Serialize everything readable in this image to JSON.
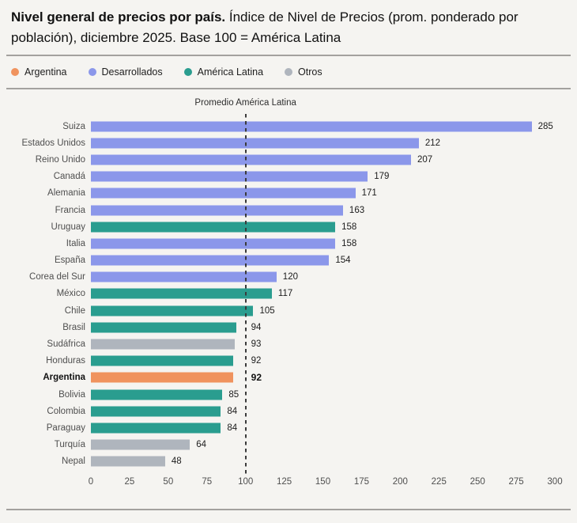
{
  "title": {
    "bold": "Nivel general de precios por país.",
    "rest": " Índice de Nivel de Precios (prom. ponderado por población), diciembre 2025. Base 100 = América Latina"
  },
  "legend": [
    {
      "key": "argentina",
      "label": "Argentina",
      "color": "#F0935E"
    },
    {
      "key": "desarrollados",
      "label": "Desarrollados",
      "color": "#8B97EA"
    },
    {
      "key": "america_latina",
      "label": "América Latina",
      "color": "#2A9D8F"
    },
    {
      "key": "otros",
      "label": "Otros",
      "color": "#AFB5BD"
    }
  ],
  "reference_line": {
    "label": "Promedio América Latina",
    "value": 100
  },
  "chart_data": {
    "type": "bar",
    "orientation": "horizontal",
    "title": "Nivel general de precios por país",
    "xlabel": "",
    "ylabel": "",
    "xlim": [
      0,
      300
    ],
    "x_ticks": [
      0,
      25,
      50,
      75,
      100,
      125,
      150,
      175,
      200,
      225,
      250,
      275,
      300
    ],
    "grid": false,
    "legend_position": "top",
    "highlight": "Argentina",
    "bars": [
      {
        "label": "Suiza",
        "value": 285,
        "group": "desarrollados",
        "emphasis": false
      },
      {
        "label": "Estados Unidos",
        "value": 212,
        "group": "desarrollados",
        "emphasis": false
      },
      {
        "label": "Reino Unido",
        "value": 207,
        "group": "desarrollados",
        "emphasis": false
      },
      {
        "label": "Canadá",
        "value": 179,
        "group": "desarrollados",
        "emphasis": false
      },
      {
        "label": "Alemania",
        "value": 171,
        "group": "desarrollados",
        "emphasis": false
      },
      {
        "label": "Francia",
        "value": 163,
        "group": "desarrollados",
        "emphasis": false
      },
      {
        "label": "Uruguay",
        "value": 158,
        "group": "america_latina",
        "emphasis": false
      },
      {
        "label": "Italia",
        "value": 158,
        "group": "desarrollados",
        "emphasis": false
      },
      {
        "label": "España",
        "value": 154,
        "group": "desarrollados",
        "emphasis": false
      },
      {
        "label": "Corea del Sur",
        "value": 120,
        "group": "desarrollados",
        "emphasis": false
      },
      {
        "label": "México",
        "value": 117,
        "group": "america_latina",
        "emphasis": false
      },
      {
        "label": "Chile",
        "value": 105,
        "group": "america_latina",
        "emphasis": false
      },
      {
        "label": "Brasil",
        "value": 94,
        "group": "america_latina",
        "emphasis": false
      },
      {
        "label": "Sudáfrica",
        "value": 93,
        "group": "otros",
        "emphasis": false
      },
      {
        "label": "Honduras",
        "value": 92,
        "group": "america_latina",
        "emphasis": false
      },
      {
        "label": "Argentina",
        "value": 92,
        "group": "argentina",
        "emphasis": true
      },
      {
        "label": "Bolivia",
        "value": 85,
        "group": "america_latina",
        "emphasis": false
      },
      {
        "label": "Colombia",
        "value": 84,
        "group": "america_latina",
        "emphasis": false
      },
      {
        "label": "Paraguay",
        "value": 84,
        "group": "america_latina",
        "emphasis": false
      },
      {
        "label": "Turquía",
        "value": 64,
        "group": "otros",
        "emphasis": false
      },
      {
        "label": "Nepal",
        "value": 48,
        "group": "otros",
        "emphasis": false
      }
    ]
  }
}
